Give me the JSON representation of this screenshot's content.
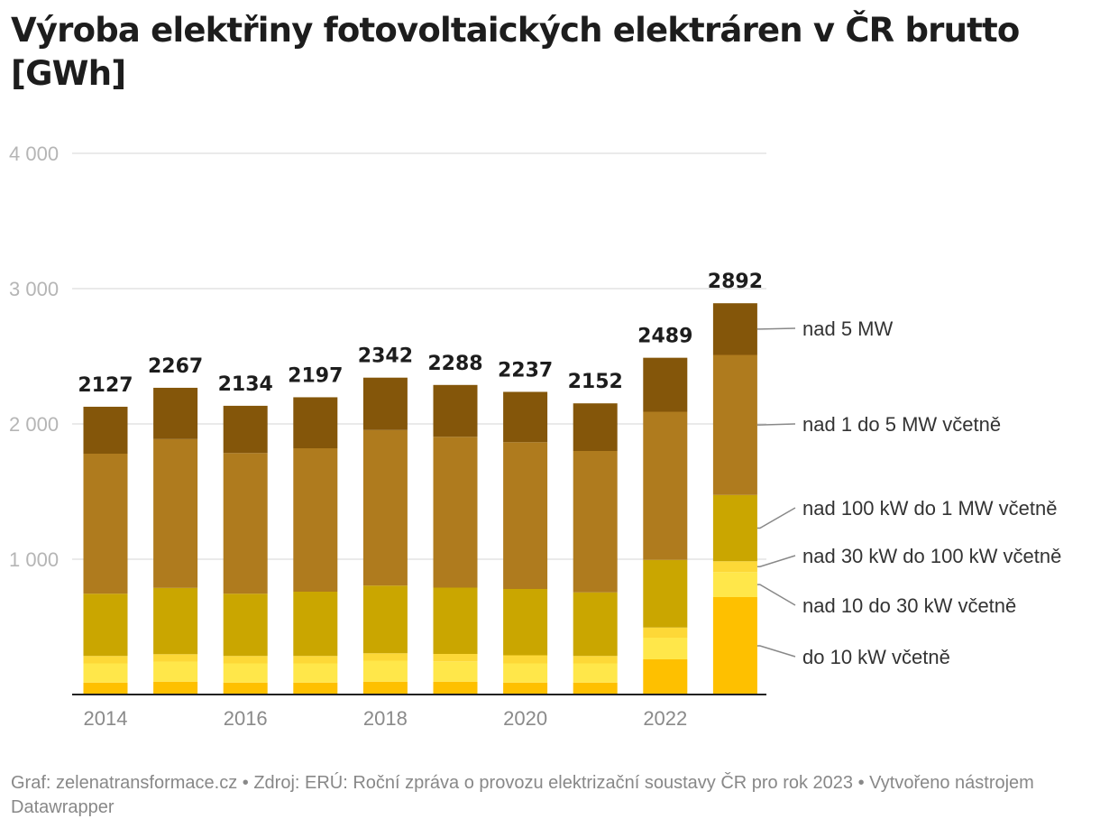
{
  "title": "Výroba elektřiny fotovoltaických elektráren v ČR brutto [GWh]",
  "footer": "Graf: zelenatransformace.cz • Zdroj: ERÚ: Roční zpráva o provozu elektrizační soustavy ČR pro rok 2023 • Vytvořeno nástrojem Datawrapper",
  "chart_data": {
    "type": "bar",
    "stacked": true,
    "title": "Výroba elektřiny fotovoltaických elektráren v ČR brutto [GWh]",
    "xlabel": "",
    "ylabel": "",
    "ylim": [
      0,
      4000
    ],
    "yticks": [
      {
        "value": 1000,
        "label": "1 000"
      },
      {
        "value": 2000,
        "label": "2 000"
      },
      {
        "value": 3000,
        "label": "3 000"
      },
      {
        "value": 4000,
        "label": "4 000"
      }
    ],
    "categories": [
      "2014",
      "2015",
      "2016",
      "2017",
      "2018",
      "2019",
      "2020",
      "2021",
      "2022",
      "2023"
    ],
    "xtick_labels": [
      "2014",
      "",
      "2016",
      "",
      "2018",
      "",
      "2020",
      "",
      "2022",
      ""
    ],
    "totals": [
      "2127",
      "2267",
      "2134",
      "2197",
      "2342",
      "2288",
      "2237",
      "2152",
      "2489",
      "2892"
    ],
    "total_values": [
      2127,
      2267,
      2134,
      2197,
      2342,
      2288,
      2237,
      2152,
      2489,
      2892
    ],
    "grid": true,
    "legend_position": "right",
    "series": [
      {
        "name": "do 10 kW včetně",
        "color": "#fec000",
        "values": [
          88,
          95,
          88,
          88,
          95,
          95,
          88,
          88,
          260,
          720
        ]
      },
      {
        "name": "nad 10 do 30 kW včetně",
        "color": "#ffe74a",
        "values": [
          142,
          148,
          142,
          142,
          155,
          150,
          142,
          142,
          160,
          185
        ]
      },
      {
        "name": "nad 30 kW do 100 kW včetně",
        "color": "#fdd837",
        "values": [
          55,
          55,
          55,
          55,
          55,
          55,
          60,
          55,
          75,
          80
        ]
      },
      {
        "name": "nad 100 kW do 1 MW včetně",
        "color": "#caa600",
        "values": [
          460,
          490,
          460,
          475,
          500,
          490,
          490,
          470,
          500,
          490
        ]
      },
      {
        "name": "nad 1 do 5 MW včetně",
        "color": "#af7b1e",
        "values": [
          1035,
          1100,
          1040,
          1060,
          1150,
          1115,
          1085,
          1045,
          1095,
          1035
        ]
      },
      {
        "name": "nad 5 MW",
        "color": "#84560a",
        "values": [
          347,
          379,
          349,
          377,
          387,
          383,
          372,
          352,
          399,
          382
        ]
      }
    ]
  }
}
